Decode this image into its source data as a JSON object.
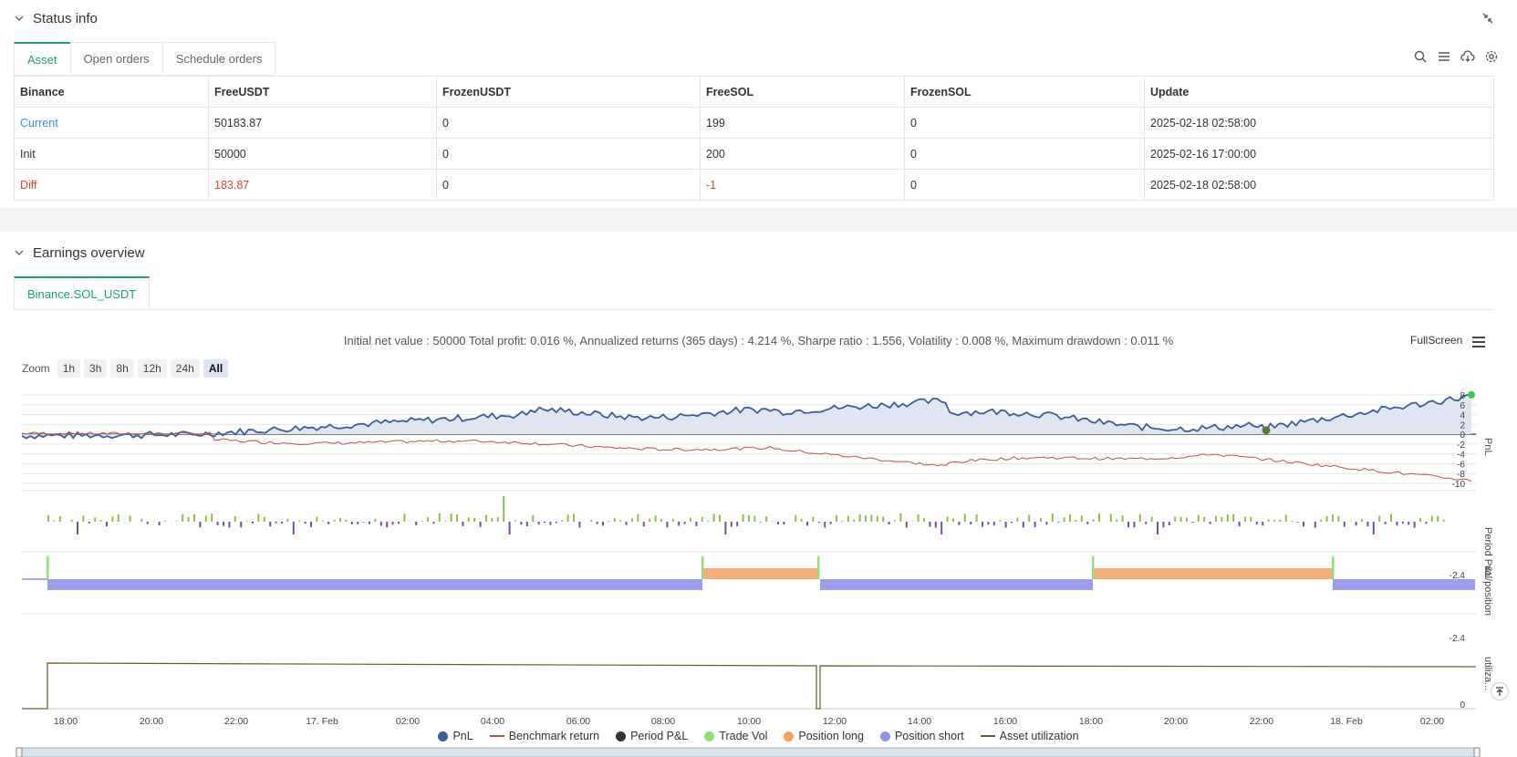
{
  "status": {
    "title": "Status info",
    "tabs": [
      "Asset",
      "Open orders",
      "Schedule orders"
    ],
    "table": {
      "headers": [
        "Binance",
        "FreeUSDT",
        "FrozenUSDT",
        "FreeSOL",
        "FrozenSOL",
        "Update"
      ],
      "rows": [
        [
          "Current",
          "50183.87",
          "0",
          "199",
          "0",
          "2025-02-18 02:58:00"
        ],
        [
          "Init",
          "50000",
          "0",
          "200",
          "0",
          "2025-02-16 17:00:00"
        ],
        [
          "Diff",
          "183.87",
          "0",
          "-1",
          "0",
          "2025-02-18 02:58:00"
        ]
      ]
    }
  },
  "earnings": {
    "title": "Earnings overview",
    "tab": "Binance.SOL_USDT",
    "stats": "Initial net value : 50000 Total profit: 0.016 %, Annualized returns (365 days) : 4.214 %, Sharpe ratio : 1.556, Volatility : 0.008 %, Maximum drawdown : 0.011 %",
    "fullscreen": "FullScreen",
    "zoom_label": "Zoom",
    "zoom_buttons": [
      "1h",
      "3h",
      "8h",
      "12h",
      "24h",
      "All"
    ]
  },
  "chart_data": {
    "type": "line",
    "x_ticks": [
      "18:00",
      "20:00",
      "22:00",
      "17. Feb",
      "02:00",
      "04:00",
      "06:00",
      "08:00",
      "10:00",
      "12:00",
      "14:00",
      "16:00",
      "18:00",
      "20:00",
      "22:00",
      "18. Feb",
      "02:00"
    ],
    "pnl_axis": {
      "label": "PnL",
      "ticks": [
        "8",
        "6",
        "4",
        "2",
        "0",
        "-2",
        "-4",
        "-6",
        "-8",
        "-10"
      ],
      "ylim": [
        -10,
        8
      ]
    },
    "period_axis": {
      "label": "Period P&L",
      "ticks": [
        "-2.4"
      ]
    },
    "position_axis": {
      "label": "vol/position",
      "ticks": [
        "-2.4"
      ]
    },
    "util_axis": {
      "label": "utiliza...",
      "ticks": [
        "0"
      ]
    },
    "series": [
      {
        "name": "PnL",
        "color": "#3b5f99"
      },
      {
        "name": "Benchmark return",
        "color": "#c0504d"
      },
      {
        "name": "Period P&L",
        "color": "#333333"
      },
      {
        "name": "Trade Vol",
        "color": "#90e07a"
      },
      {
        "name": "Position long",
        "color": "#f4a261"
      },
      {
        "name": "Position short",
        "color": "#8f93e6"
      },
      {
        "name": "Asset utilization",
        "color": "#6b5a2a"
      }
    ]
  }
}
